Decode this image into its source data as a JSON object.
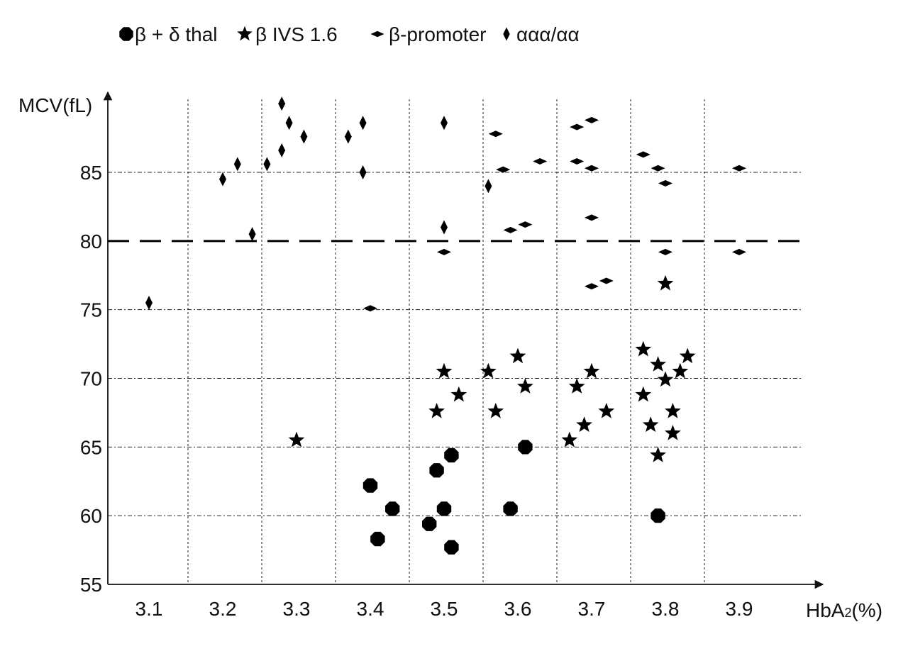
{
  "chart_data": {
    "type": "scatter",
    "title": "",
    "xlabel": "HbA",
    "xlabel_sub": "2",
    "xlabel_suffix": "(%)",
    "ylabel": "MCV(fL)",
    "x_categories": [
      "3.1",
      "3.2",
      "3.3",
      "3.4",
      "3.5",
      "3.6",
      "3.7",
      "3.8",
      "3.9"
    ],
    "y_ticks": [
      55,
      60,
      65,
      70,
      75,
      80,
      85
    ],
    "ylim": [
      55,
      90
    ],
    "threshold_line": 80,
    "grid": true,
    "legend_position": "top-left",
    "legend": [
      {
        "label": "β + δ thal",
        "marker": "octagon"
      },
      {
        "label": "β IVS 1.6",
        "marker": "star"
      },
      {
        "label": "β-promoter",
        "marker": "flat-diamond"
      },
      {
        "label": "ααα/αα",
        "marker": "tall-diamond"
      }
    ],
    "series": [
      {
        "name": "β + δ thal",
        "marker": "octagon",
        "points": [
          [
            3.4,
            62.2
          ],
          [
            3.41,
            58.3
          ],
          [
            3.43,
            60.5
          ],
          [
            3.48,
            59.4
          ],
          [
            3.49,
            63.3
          ],
          [
            3.5,
            60.5
          ],
          [
            3.51,
            64.4
          ],
          [
            3.51,
            57.7
          ],
          [
            3.59,
            60.5
          ],
          [
            3.61,
            65.0
          ],
          [
            3.79,
            60.0
          ]
        ]
      },
      {
        "name": "β IVS 1.6",
        "marker": "star",
        "points": [
          [
            3.3,
            65.5
          ],
          [
            3.49,
            67.6
          ],
          [
            3.5,
            70.5
          ],
          [
            3.52,
            68.8
          ],
          [
            3.56,
            70.5
          ],
          [
            3.57,
            67.6
          ],
          [
            3.6,
            71.6
          ],
          [
            3.61,
            69.4
          ],
          [
            3.67,
            65.5
          ],
          [
            3.68,
            69.4
          ],
          [
            3.69,
            66.6
          ],
          [
            3.7,
            70.5
          ],
          [
            3.72,
            67.6
          ],
          [
            3.77,
            72.1
          ],
          [
            3.77,
            68.8
          ],
          [
            3.78,
            66.6
          ],
          [
            3.79,
            71.0
          ],
          [
            3.79,
            64.4
          ],
          [
            3.8,
            69.9
          ],
          [
            3.8,
            76.9
          ],
          [
            3.81,
            67.6
          ],
          [
            3.81,
            66.0
          ],
          [
            3.82,
            70.5
          ],
          [
            3.83,
            71.6
          ]
        ]
      },
      {
        "name": "β-promoter",
        "marker": "flat-diamond",
        "points": [
          [
            3.4,
            75.1
          ],
          [
            3.5,
            79.2
          ],
          [
            3.57,
            87.8
          ],
          [
            3.58,
            85.2
          ],
          [
            3.59,
            80.8
          ],
          [
            3.61,
            81.2
          ],
          [
            3.63,
            85.8
          ],
          [
            3.68,
            88.3
          ],
          [
            3.68,
            85.8
          ],
          [
            3.7,
            85.3
          ],
          [
            3.7,
            88.8
          ],
          [
            3.7,
            81.7
          ],
          [
            3.7,
            76.7
          ],
          [
            3.72,
            77.1
          ],
          [
            3.77,
            86.3
          ],
          [
            3.79,
            85.3
          ],
          [
            3.8,
            84.2
          ],
          [
            3.8,
            79.2
          ],
          [
            3.9,
            85.3
          ],
          [
            3.9,
            79.2
          ]
        ]
      },
      {
        "name": "ααα/αα",
        "marker": "tall-diamond",
        "points": [
          [
            3.1,
            75.5
          ],
          [
            3.2,
            84.5
          ],
          [
            3.22,
            85.6
          ],
          [
            3.24,
            80.5
          ],
          [
            3.26,
            85.6
          ],
          [
            3.28,
            86.6
          ],
          [
            3.28,
            90.0
          ],
          [
            3.29,
            88.6
          ],
          [
            3.31,
            87.6
          ],
          [
            3.37,
            87.6
          ],
          [
            3.39,
            88.6
          ],
          [
            3.39,
            85.0
          ],
          [
            3.5,
            88.6
          ],
          [
            3.5,
            81.0
          ],
          [
            3.56,
            84.0
          ]
        ]
      }
    ]
  }
}
